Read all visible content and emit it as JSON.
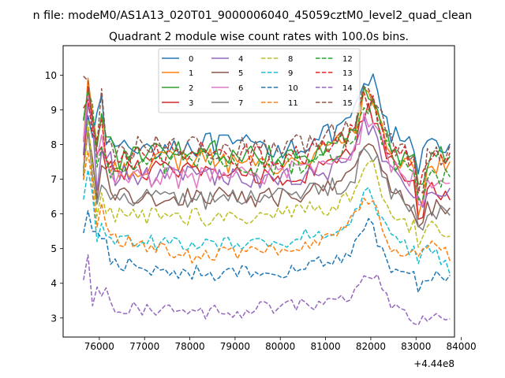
{
  "chart_data": {
    "type": "line",
    "suptitle": "n file: modeM0/AS1A13_020T01_9000006040_45059cztM0_level2_quad_clean",
    "title": "Quadrant 2 module wise count rates with 100.0s bins.",
    "xlabel": "",
    "ylabel": "",
    "x_offset_label": "+4.44e8",
    "xlim": [
      75200,
      83850
    ],
    "ylim": [
      2.45,
      10.85
    ],
    "xticks": [
      76000,
      77000,
      78000,
      79000,
      80000,
      81000,
      82000,
      83000,
      84000
    ],
    "xtick_labels": [
      "76000",
      "77000",
      "78000",
      "79000",
      "80000",
      "81000",
      "82000",
      "83000",
      "84000"
    ],
    "yticks": [
      3,
      4,
      5,
      6,
      7,
      8,
      9,
      10
    ],
    "ytick_labels": [
      "3",
      "4",
      "5",
      "6",
      "7",
      "8",
      "9",
      "10"
    ],
    "grid": false,
    "legend": {
      "placement": "upper-center",
      "columns": 4
    },
    "x_start": 75650,
    "x_end": 83750,
    "x_step": 100,
    "series": [
      {
        "name": "0",
        "color": "#1f77b4",
        "dash": "solid",
        "base": 8.0,
        "anchors": [
          [
            75650,
            8.2
          ],
          [
            75800,
            10.0
          ],
          [
            75900,
            7.6
          ],
          [
            76000,
            9.0
          ],
          [
            76300,
            7.9
          ],
          [
            78000,
            8.0
          ],
          [
            80000,
            7.9
          ],
          [
            81000,
            8.2
          ],
          [
            81600,
            8.6
          ],
          [
            81900,
            10.0
          ],
          [
            82100,
            9.6
          ],
          [
            82400,
            8.3
          ],
          [
            83000,
            7.9
          ],
          [
            83100,
            6.9
          ],
          [
            83200,
            8.3
          ],
          [
            83750,
            8.0
          ]
        ]
      },
      {
        "name": "1",
        "color": "#ff7f0e",
        "dash": "solid",
        "base": 7.6,
        "anchors": [
          [
            75650,
            8.5
          ],
          [
            75800,
            10.3
          ],
          [
            75900,
            6.3
          ],
          [
            76000,
            8.6
          ],
          [
            76300,
            7.3
          ],
          [
            78000,
            7.6
          ],
          [
            80000,
            7.4
          ],
          [
            81000,
            7.8
          ],
          [
            81600,
            8.3
          ],
          [
            81900,
            9.5
          ],
          [
            82100,
            9.1
          ],
          [
            82400,
            7.8
          ],
          [
            83000,
            7.2
          ],
          [
            83100,
            5.2
          ],
          [
            83200,
            7.6
          ],
          [
            83750,
            7.3
          ]
        ]
      },
      {
        "name": "2",
        "color": "#2ca02c",
        "dash": "solid",
        "base": 7.7,
        "anchors": [
          [
            75650,
            9.1
          ],
          [
            75800,
            10.2
          ],
          [
            75900,
            7.5
          ],
          [
            76000,
            8.8
          ],
          [
            76300,
            7.6
          ],
          [
            78000,
            7.8
          ],
          [
            80000,
            7.7
          ],
          [
            81000,
            7.9
          ],
          [
            81600,
            8.3
          ],
          [
            81900,
            9.6
          ],
          [
            82100,
            9.3
          ],
          [
            82400,
            7.9
          ],
          [
            83000,
            7.4
          ],
          [
            83100,
            6.2
          ],
          [
            83200,
            7.6
          ],
          [
            83750,
            7.6
          ]
        ]
      },
      {
        "name": "3",
        "color": "#d62728",
        "dash": "solid",
        "base": 7.3,
        "anchors": [
          [
            75650,
            7.4
          ],
          [
            75800,
            10.1
          ],
          [
            75900,
            6.8
          ],
          [
            76000,
            8.2
          ],
          [
            76300,
            7.3
          ],
          [
            78000,
            7.2
          ],
          [
            80000,
            7.1
          ],
          [
            81000,
            7.3
          ],
          [
            81600,
            7.8
          ],
          [
            81900,
            9.1
          ],
          [
            82100,
            8.5
          ],
          [
            82400,
            7.4
          ],
          [
            83000,
            6.8
          ],
          [
            83100,
            5.3
          ],
          [
            83200,
            6.9
          ],
          [
            83750,
            6.5
          ]
        ]
      },
      {
        "name": "4",
        "color": "#9467bd",
        "dash": "solid",
        "base": 7.1,
        "anchors": [
          [
            75650,
            8.0
          ],
          [
            75800,
            9.7
          ],
          [
            75900,
            6.5
          ],
          [
            76000,
            8.0
          ],
          [
            76300,
            7.1
          ],
          [
            78000,
            7.1
          ],
          [
            80000,
            7.0
          ],
          [
            81000,
            7.2
          ],
          [
            81600,
            7.6
          ],
          [
            81900,
            8.7
          ],
          [
            82100,
            8.2
          ],
          [
            82400,
            7.2
          ],
          [
            83000,
            6.7
          ],
          [
            83100,
            5.8
          ],
          [
            83200,
            6.8
          ],
          [
            83750,
            6.6
          ]
        ]
      },
      {
        "name": "5",
        "color": "#8c564b",
        "dash": "solid",
        "base": 6.6,
        "anchors": [
          [
            75650,
            7.5
          ],
          [
            75800,
            9.4
          ],
          [
            75900,
            5.9
          ],
          [
            76000,
            7.5
          ],
          [
            76300,
            6.5
          ],
          [
            78000,
            6.5
          ],
          [
            80000,
            6.5
          ],
          [
            81000,
            6.7
          ],
          [
            81600,
            7.2
          ],
          [
            81900,
            8.3
          ],
          [
            82100,
            7.8
          ],
          [
            82400,
            6.7
          ],
          [
            83000,
            6.1
          ],
          [
            83100,
            5.0
          ],
          [
            83200,
            6.3
          ],
          [
            83750,
            6.0
          ]
        ]
      },
      {
        "name": "6",
        "color": "#e377c2",
        "dash": "solid",
        "base": 7.2,
        "anchors": [
          [
            75650,
            8.3
          ],
          [
            75800,
            9.6
          ],
          [
            75900,
            6.6
          ],
          [
            76000,
            8.1
          ],
          [
            76300,
            7.1
          ],
          [
            78000,
            7.0
          ],
          [
            80000,
            7.2
          ],
          [
            81000,
            7.5
          ],
          [
            81600,
            7.7
          ],
          [
            81900,
            8.8
          ],
          [
            82100,
            8.4
          ],
          [
            82400,
            7.4
          ],
          [
            83000,
            7.0
          ],
          [
            83100,
            6.0
          ],
          [
            83200,
            7.0
          ],
          [
            83750,
            6.8
          ]
        ]
      },
      {
        "name": "7",
        "color": "#7f7f7f",
        "dash": "solid",
        "base": 6.6,
        "anchors": [
          [
            75650,
            7.3
          ],
          [
            75800,
            9.2
          ],
          [
            75900,
            5.7
          ],
          [
            76000,
            7.4
          ],
          [
            76300,
            6.5
          ],
          [
            78000,
            6.4
          ],
          [
            80000,
            6.5
          ],
          [
            81000,
            6.7
          ],
          [
            81600,
            7.0
          ],
          [
            81900,
            8.1
          ],
          [
            82100,
            7.7
          ],
          [
            82400,
            6.7
          ],
          [
            83000,
            6.1
          ],
          [
            83100,
            5.1
          ],
          [
            83200,
            6.2
          ],
          [
            83750,
            5.8
          ]
        ]
      },
      {
        "name": "8",
        "color": "#bcbd22",
        "dash": "dashed",
        "base": 6.0,
        "anchors": [
          [
            75650,
            7.0
          ],
          [
            75800,
            8.9
          ],
          [
            75900,
            5.4
          ],
          [
            76000,
            6.7
          ],
          [
            76300,
            6.0
          ],
          [
            78000,
            5.9
          ],
          [
            80000,
            6.0
          ],
          [
            81000,
            6.2
          ],
          [
            81600,
            6.6
          ],
          [
            81900,
            7.6
          ],
          [
            82100,
            7.2
          ],
          [
            82400,
            6.1
          ],
          [
            83000,
            5.6
          ],
          [
            83100,
            4.9
          ],
          [
            83200,
            5.7
          ],
          [
            83750,
            5.4
          ]
        ]
      },
      {
        "name": "9",
        "color": "#17becf",
        "dash": "dashed",
        "base": 5.2,
        "anchors": [
          [
            75650,
            6.4
          ],
          [
            75800,
            7.6
          ],
          [
            75900,
            5.0
          ],
          [
            76000,
            6.0
          ],
          [
            76300,
            5.3
          ],
          [
            78000,
            5.1
          ],
          [
            80000,
            5.2
          ],
          [
            81000,
            5.5
          ],
          [
            81600,
            5.9
          ],
          [
            81900,
            6.9
          ],
          [
            82100,
            6.3
          ],
          [
            82400,
            5.3
          ],
          [
            83000,
            4.9
          ],
          [
            83100,
            4.4
          ],
          [
            83200,
            5.1
          ],
          [
            83750,
            4.4
          ]
        ]
      },
      {
        "name": "10",
        "color": "#1f77b4",
        "dash": "dashed",
        "base": 4.3,
        "anchors": [
          [
            75650,
            5.4
          ],
          [
            75800,
            6.8
          ],
          [
            75900,
            4.9
          ],
          [
            76000,
            5.6
          ],
          [
            76300,
            4.6
          ],
          [
            78000,
            4.3
          ],
          [
            80000,
            4.3
          ],
          [
            81000,
            4.6
          ],
          [
            81600,
            4.9
          ],
          [
            81900,
            5.9
          ],
          [
            82100,
            5.4
          ],
          [
            82400,
            4.5
          ],
          [
            83000,
            4.2
          ],
          [
            83100,
            3.6
          ],
          [
            83200,
            4.3
          ],
          [
            83750,
            4.1
          ]
        ]
      },
      {
        "name": "11",
        "color": "#ff7f0e",
        "dash": "dashed",
        "base": 5.0,
        "anchors": [
          [
            75650,
            6.9
          ],
          [
            75800,
            7.9
          ],
          [
            75900,
            5.3
          ],
          [
            76000,
            6.1
          ],
          [
            76300,
            5.3
          ],
          [
            78000,
            4.8
          ],
          [
            80000,
            5.0
          ],
          [
            81000,
            5.3
          ],
          [
            81600,
            5.8
          ],
          [
            81900,
            6.6
          ],
          [
            82100,
            6.2
          ],
          [
            82400,
            5.1
          ],
          [
            83000,
            4.8
          ],
          [
            83100,
            4.6
          ],
          [
            83200,
            5.1
          ],
          [
            83750,
            4.8
          ]
        ]
      },
      {
        "name": "12",
        "color": "#2ca02c",
        "dash": "dashed",
        "base": 7.4,
        "anchors": [
          [
            75650,
            8.5
          ],
          [
            75800,
            10.2
          ],
          [
            75900,
            7.0
          ],
          [
            76000,
            8.5
          ],
          [
            76300,
            7.4
          ],
          [
            78000,
            7.5
          ],
          [
            80000,
            7.4
          ],
          [
            81000,
            7.6
          ],
          [
            81600,
            8.0
          ],
          [
            81900,
            9.2
          ],
          [
            82100,
            9.0
          ],
          [
            82400,
            7.6
          ],
          [
            83000,
            7.0
          ],
          [
            83100,
            5.6
          ],
          [
            83200,
            7.2
          ],
          [
            83750,
            7.0
          ]
        ]
      },
      {
        "name": "13",
        "color": "#d62728",
        "dash": "dashed",
        "base": 7.7,
        "anchors": [
          [
            75650,
            8.8
          ],
          [
            75800,
            10.4
          ],
          [
            75900,
            6.9
          ],
          [
            76000,
            8.6
          ],
          [
            76300,
            7.7
          ],
          [
            78000,
            7.8
          ],
          [
            80000,
            7.6
          ],
          [
            81000,
            7.9
          ],
          [
            81600,
            8.3
          ],
          [
            81900,
            9.4
          ],
          [
            82100,
            9.0
          ],
          [
            82400,
            7.9
          ],
          [
            83000,
            7.4
          ],
          [
            83100,
            6.3
          ],
          [
            83200,
            7.5
          ],
          [
            83750,
            7.5
          ]
        ]
      },
      {
        "name": "14",
        "color": "#9467bd",
        "dash": "dashed",
        "base": 3.25,
        "anchors": [
          [
            75650,
            3.9
          ],
          [
            75750,
            4.7
          ],
          [
            75850,
            3.4
          ],
          [
            76000,
            3.9
          ],
          [
            76300,
            3.3
          ],
          [
            78000,
            3.1
          ],
          [
            79000,
            3.2
          ],
          [
            80000,
            3.3
          ],
          [
            81000,
            3.5
          ],
          [
            81600,
            3.6
          ],
          [
            81900,
            4.2
          ],
          [
            82100,
            4.3
          ],
          [
            82400,
            3.5
          ],
          [
            83000,
            3.0
          ],
          [
            83100,
            2.85
          ],
          [
            83200,
            3.1
          ],
          [
            83750,
            3.1
          ]
        ]
      },
      {
        "name": "15",
        "color": "#8c564b",
        "dash": "dashed",
        "base": 7.9,
        "anchors": [
          [
            75650,
            9.6
          ],
          [
            75800,
            10.4
          ],
          [
            75900,
            7.6
          ],
          [
            76000,
            9.2
          ],
          [
            76300,
            7.9
          ],
          [
            78000,
            7.9
          ],
          [
            80000,
            7.9
          ],
          [
            81000,
            8.2
          ],
          [
            81600,
            8.5
          ],
          [
            81900,
            9.7
          ],
          [
            82100,
            9.4
          ],
          [
            82400,
            8.1
          ],
          [
            83000,
            7.6
          ],
          [
            83100,
            5.8
          ],
          [
            83200,
            7.8
          ],
          [
            83750,
            7.7
          ]
        ]
      }
    ]
  }
}
